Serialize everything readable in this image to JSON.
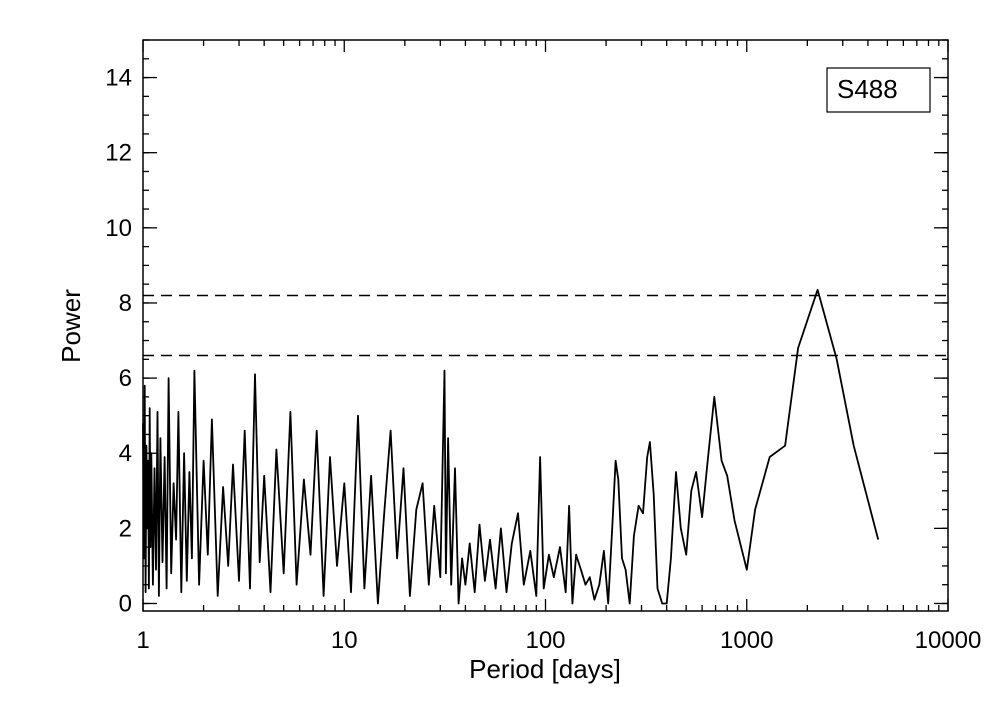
{
  "chart_data": {
    "type": "line",
    "title": "",
    "xlabel": "Period [days]",
    "ylabel": "Power",
    "xscale": "log",
    "xlim": [
      1,
      10000
    ],
    "ylim": [
      -0.2,
      15
    ],
    "xticks": [
      1,
      10,
      100,
      1000,
      10000
    ],
    "xtick_labels": [
      "1",
      "10",
      "100",
      "1000",
      "10000"
    ],
    "yticks": [
      0,
      2,
      4,
      6,
      8,
      10,
      12,
      14
    ],
    "ytick_labels": [
      "0",
      "2",
      "4",
      "6",
      "8",
      "10",
      "12",
      "14"
    ],
    "grid": false,
    "legend": {
      "text": "S488",
      "placement": "top-right"
    },
    "reference_lines": [
      {
        "y": 8.2,
        "style": "dashed"
      },
      {
        "y": 6.6,
        "style": "dashed"
      }
    ],
    "series": [
      {
        "x": [
          1.0,
          1.01,
          1.02,
          1.03,
          1.04,
          1.05,
          1.06,
          1.07,
          1.08,
          1.09,
          1.1,
          1.12,
          1.14,
          1.16,
          1.18,
          1.2,
          1.22,
          1.25,
          1.28,
          1.31,
          1.34,
          1.38,
          1.42,
          1.46,
          1.5,
          1.55,
          1.6,
          1.65,
          1.7,
          1.75,
          1.8,
          1.9,
          2.0,
          2.1,
          2.2,
          2.35,
          2.5,
          2.65,
          2.8,
          3.0,
          3.2,
          3.4,
          3.6,
          3.8,
          4.0,
          4.3,
          4.6,
          5.0,
          5.4,
          5.8,
          6.3,
          6.8,
          7.3,
          7.9,
          8.5,
          9.2,
          10.0,
          10.8,
          11.7,
          12.6,
          13.6,
          14.7,
          15.8,
          17.0,
          18.3,
          19.7,
          21.2,
          22.8,
          24.5,
          26.3,
          28.0,
          30.0,
          31.5,
          32.0,
          32.8,
          34.0,
          35.5,
          37.0,
          38.5,
          40.0,
          42.0,
          44.5,
          47.0,
          50.0,
          53.0,
          56.5,
          60.0,
          64.0,
          68.0,
          73.0,
          78.0,
          84.0,
          90.0,
          94.0,
          98.0,
          104.0,
          110.0,
          118.0,
          126.0,
          131.0,
          136.0,
          142.0,
          150.0,
          158.0,
          166.0,
          175.0,
          185.0,
          195.0,
          205.0,
          215.0,
          223.0,
          230.0,
          240.0,
          250.0,
          262.0,
          275.0,
          290.0,
          305.0,
          320.0,
          330.0,
          345.0,
          360.0,
          380.0,
          400.0,
          420.0,
          445.0,
          470.0,
          500.0,
          530.0,
          560.0,
          600.0,
          640.0,
          690.0,
          750.0,
          800.0,
          870.0,
          1000.0,
          1100.0,
          1300.0,
          1550.0,
          1800.0,
          2250.0,
          2800.0,
          3400.0,
          4500.0
        ],
        "values": [
          4.8,
          1.2,
          5.8,
          0.3,
          4.2,
          2.0,
          3.8,
          0.4,
          5.2,
          1.5,
          4.0,
          0.5,
          3.6,
          0.9,
          5.1,
          0.2,
          4.4,
          1.1,
          3.9,
          0.4,
          6.0,
          0.8,
          3.2,
          1.7,
          5.1,
          0.3,
          4.0,
          0.6,
          3.5,
          1.2,
          6.2,
          0.5,
          3.8,
          1.3,
          4.9,
          0.2,
          3.1,
          1.0,
          3.7,
          0.6,
          4.6,
          0.4,
          6.1,
          1.1,
          3.4,
          0.3,
          4.1,
          0.8,
          5.1,
          0.5,
          3.3,
          1.3,
          4.6,
          0.2,
          3.9,
          1.0,
          3.2,
          0.3,
          5.0,
          0.4,
          3.4,
          0.0,
          2.4,
          4.6,
          1.2,
          3.6,
          0.2,
          2.5,
          3.2,
          0.5,
          2.6,
          0.7,
          6.2,
          0.8,
          4.4,
          0.5,
          3.6,
          0.0,
          1.2,
          0.5,
          1.6,
          0.3,
          2.1,
          0.6,
          1.7,
          0.4,
          2.0,
          0.3,
          1.6,
          2.4,
          0.5,
          1.4,
          0.2,
          3.9,
          0.4,
          1.3,
          0.7,
          1.5,
          0.3,
          2.6,
          0.0,
          1.3,
          0.9,
          0.5,
          0.7,
          0.1,
          0.5,
          1.4,
          0.0,
          2.1,
          3.8,
          3.3,
          1.2,
          0.9,
          0.0,
          1.8,
          2.6,
          2.4,
          3.9,
          4.3,
          2.9,
          0.4,
          0.0,
          0.0,
          1.2,
          3.5,
          2.0,
          1.3,
          3.0,
          3.5,
          2.3,
          3.8,
          5.5,
          3.8,
          3.4,
          2.2,
          0.9,
          2.5,
          3.9,
          4.2,
          6.8,
          8.35,
          6.5,
          4.2,
          1.7
        ]
      }
    ]
  }
}
